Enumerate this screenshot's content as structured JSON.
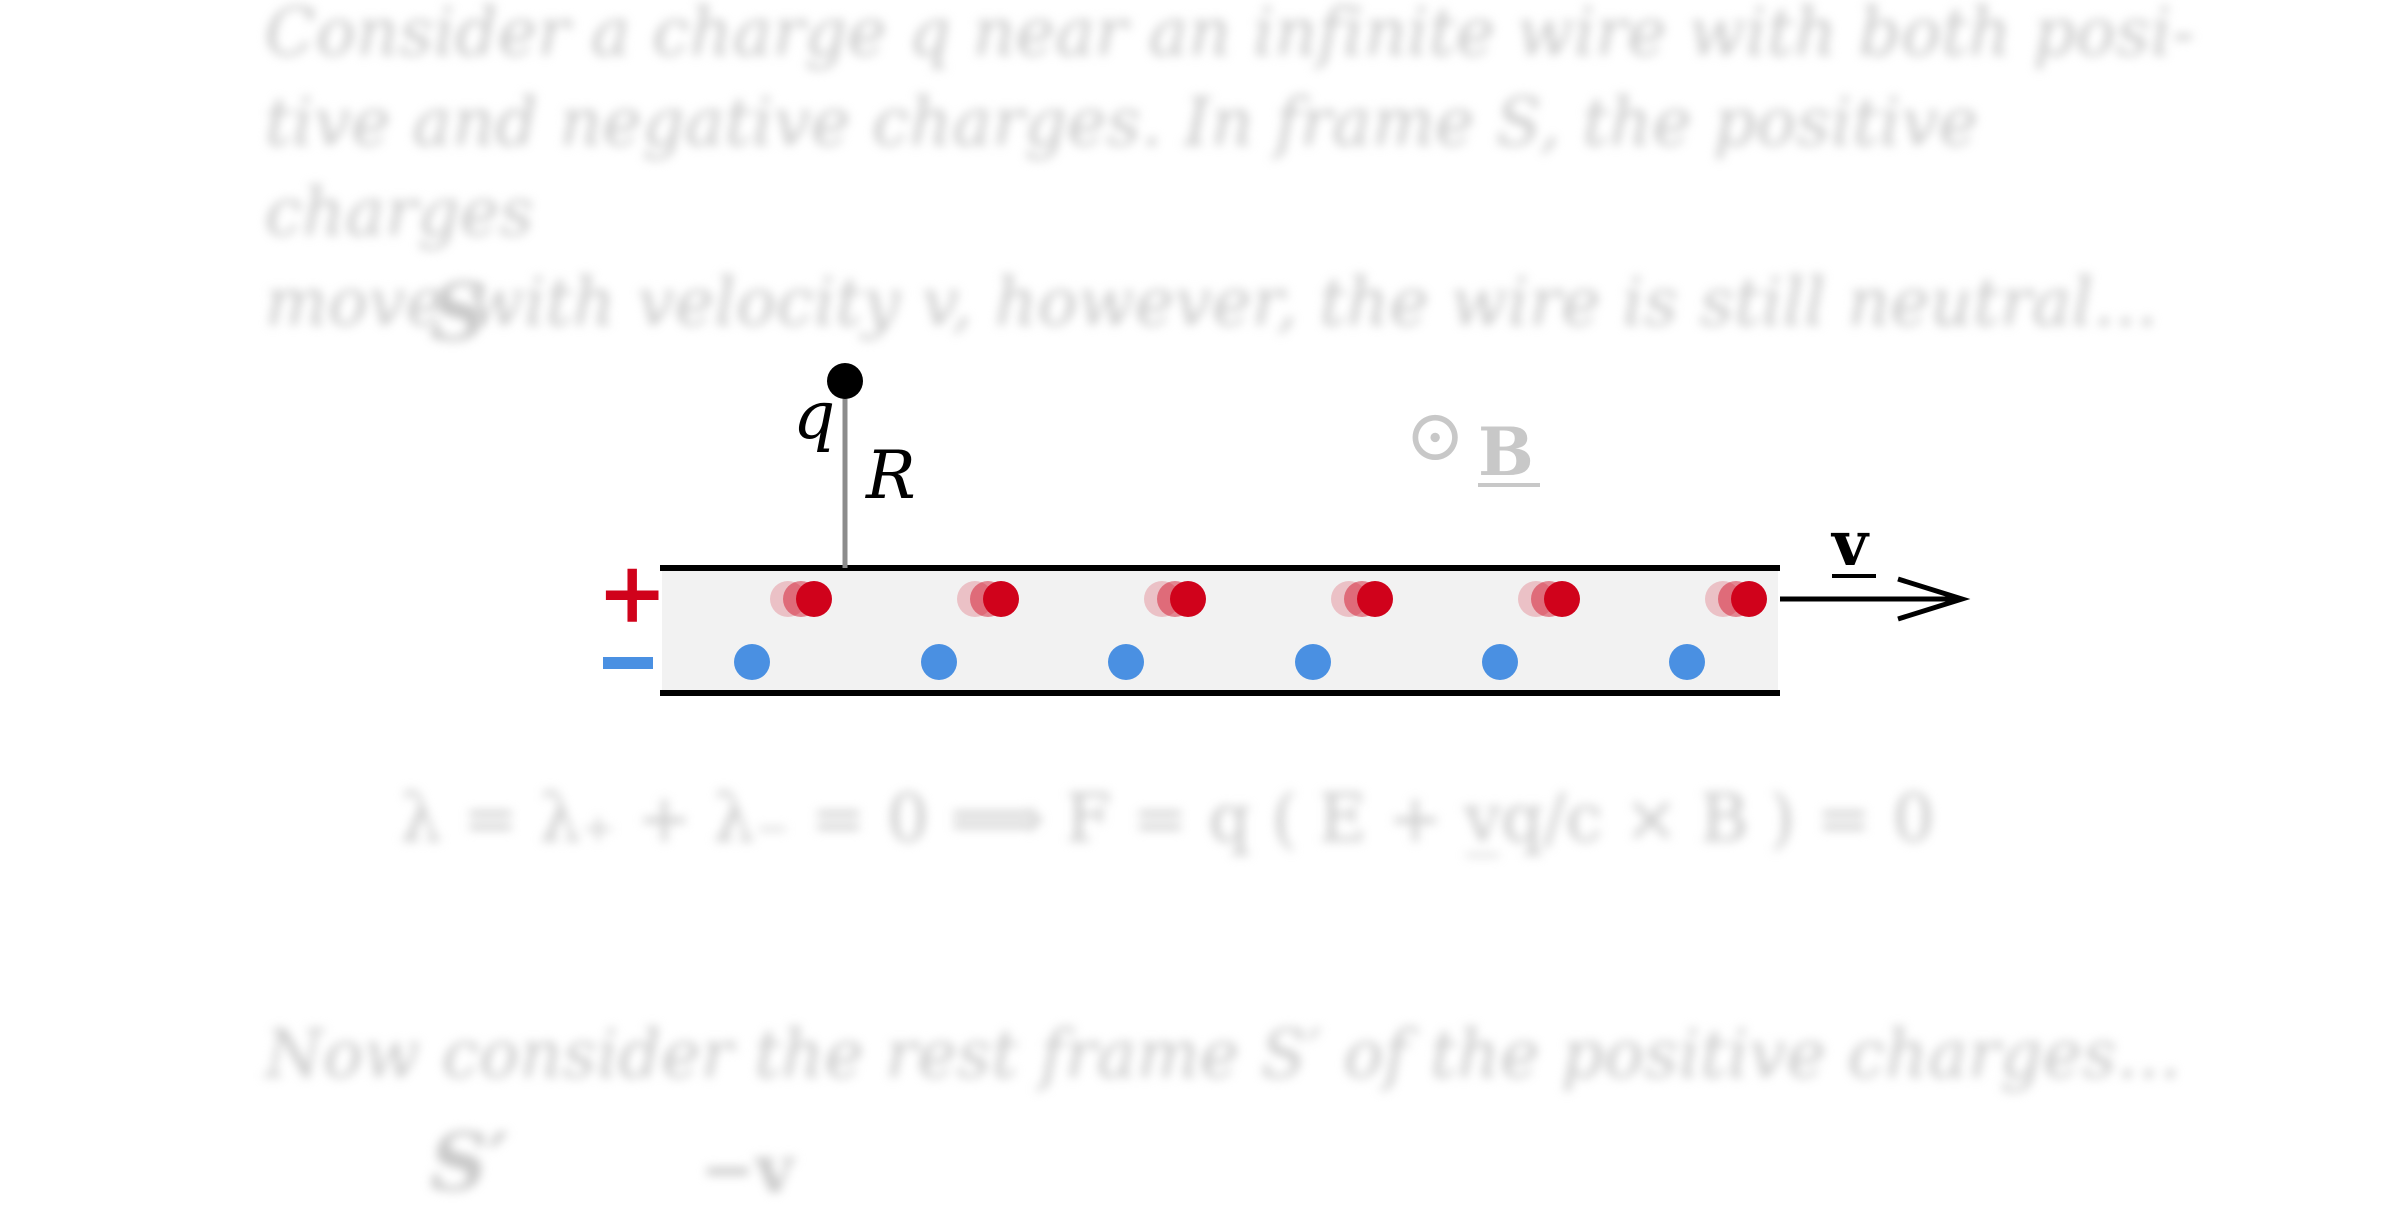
{
  "intro": {
    "lines": [
      "Consider a charge q near an infinite wire with both posi-",
      "tive and negative charges. In frame S, the positive charges",
      "move with velocity v, however, the wire is still neutral..."
    ]
  },
  "frame_s": "S",
  "diagram": {
    "charge_label": "q",
    "distance_label": "R",
    "field_symbol": "⊙",
    "field_label": "B",
    "velocity_label": "v",
    "plus_sign": "+",
    "minus_sign": "−",
    "positive_count": 6,
    "negative_count": 6,
    "colors": {
      "positive": "#d0021b",
      "negative": "#4a90e2",
      "wire_fill": "#f2f2f2",
      "field": "#c8c8c8"
    }
  },
  "equation": "λ = λ₊ + λ₋ = 0  ⟹  F = q ( E + v̲q/c × B ) = 0",
  "outro": "Now consider the rest frame S′ of the positive charges...",
  "frame_s_prime": "S′",
  "partial_text": "−v"
}
